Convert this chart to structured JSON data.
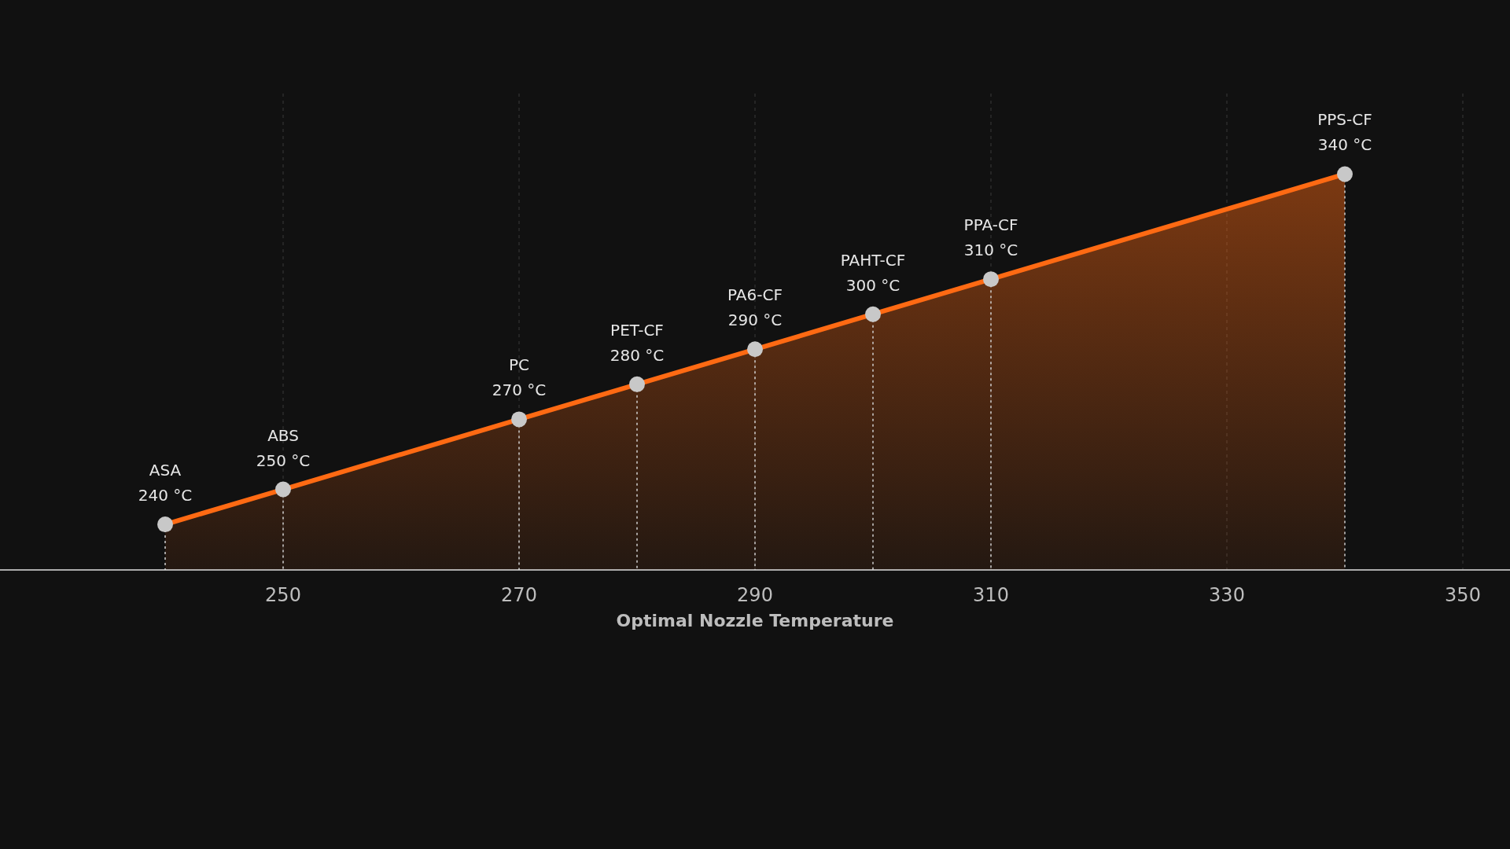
{
  "chart_data": {
    "type": "area",
    "xlabel": "Optimal Nozzle Temperature",
    "x": [
      240,
      250,
      270,
      280,
      290,
      300,
      310,
      340
    ],
    "series": [
      {
        "color": "#ff6a13",
        "values": [
          240,
          250,
          270,
          280,
          290,
          300,
          310,
          340
        ],
        "value_labels": [
          "240 °C",
          "250 °C",
          "270 °C",
          "280 °C",
          "290 °C",
          "300 °C",
          "310 °C",
          "340 °C"
        ]
      }
    ],
    "annotations": [
      {
        "text": "ASA",
        "x": 240,
        "y": 240
      },
      {
        "text": "ABS",
        "x": 250,
        "y": 250
      },
      {
        "text": "PC",
        "x": 270,
        "y": 270
      },
      {
        "text": "PET-CF",
        "x": 280,
        "y": 280
      },
      {
        "text": "PA6-CF",
        "x": 290,
        "y": 290
      },
      {
        "text": "PAHT-CF",
        "x": 300,
        "y": 300
      },
      {
        "text": "PPA-CF",
        "x": 310,
        "y": 310
      },
      {
        "text": "PPS-CF",
        "x": 340,
        "y": 340
      }
    ],
    "ref_lines": [
      {
        "axis": "x",
        "value": 240,
        "line_style": "dotted"
      },
      {
        "axis": "x",
        "value": 250,
        "line_style": "dotted"
      },
      {
        "axis": "x",
        "value": 270,
        "line_style": "dotted"
      },
      {
        "axis": "x",
        "value": 280,
        "line_style": "dotted"
      },
      {
        "axis": "x",
        "value": 290,
        "line_style": "dotted"
      },
      {
        "axis": "x",
        "value": 300,
        "line_style": "dotted"
      },
      {
        "axis": "x",
        "value": 310,
        "line_style": "dotted"
      },
      {
        "axis": "x",
        "value": 340,
        "line_style": "dotted"
      }
    ],
    "xlim": [
      226,
      354
    ],
    "xticks": [
      250,
      270,
      290,
      310,
      330,
      350
    ],
    "ylim": [
      227,
      363
    ],
    "grid": "x",
    "marker": "circle",
    "tick_labels": "x"
  }
}
